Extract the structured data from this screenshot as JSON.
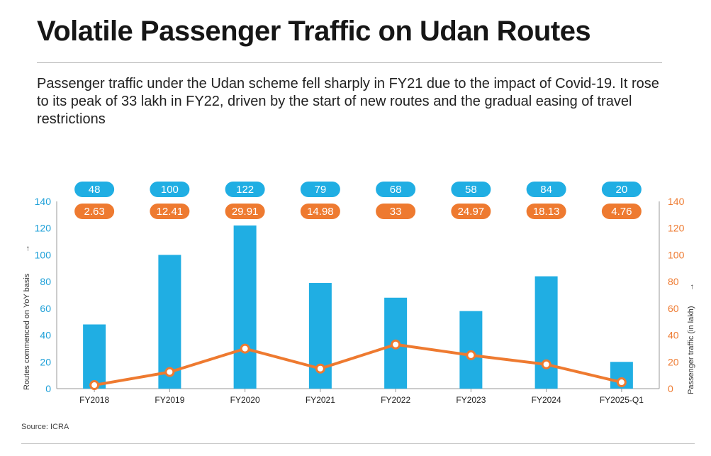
{
  "header": {
    "title": "Volatile Passenger Traffic on Udan Routes",
    "subtitle": "Passenger traffic under the Udan scheme fell sharply in FY21 due to the impact of Covid-19. It rose to its peak of 33 lakh in FY22, driven by the start of new routes and the gradual easing of travel restrictions"
  },
  "footer": {
    "source": "Source: ICRA"
  },
  "colors": {
    "bar": "#20aee3",
    "line": "#ee7a30",
    "left_axis_text": "#1ea0d8",
    "right_axis_text": "#ee7a30",
    "axis": "#999999"
  },
  "chart_data": {
    "type": "bar",
    "categories": [
      "FY2018",
      "FY2019",
      "FY2020",
      "FY2021",
      "FY2022",
      "FY2023",
      "FY2024",
      "FY2025-Q1"
    ],
    "series": [
      {
        "name": "Routes commenced on YoY basis",
        "type": "bar",
        "axis": "left",
        "values": [
          48,
          100,
          122,
          79,
          68,
          58,
          84,
          20
        ],
        "labels": [
          "48",
          "100",
          "122",
          "79",
          "68",
          "58",
          "84",
          "20"
        ]
      },
      {
        "name": "Passenger traffic (in lakh)",
        "type": "line",
        "axis": "right",
        "values": [
          2.63,
          12.41,
          29.91,
          14.98,
          33,
          24.97,
          18.13,
          4.76
        ],
        "labels": [
          "2.63",
          "12.41",
          "29.91",
          "14.98",
          "33",
          "24.97",
          "18.13",
          "4.76"
        ]
      }
    ],
    "yleft_label": "Routes commenced on YoY basis",
    "yright_label": "Passenger traffic (in lakh)",
    "yleft_ticks": [
      0,
      20,
      40,
      60,
      80,
      100,
      120,
      140
    ],
    "yright_ticks": [
      0,
      20,
      40,
      60,
      80,
      100,
      120,
      140
    ],
    "ylim_left": [
      0,
      140
    ],
    "ylim_right": [
      0,
      140
    ],
    "arrow_glyph": "→"
  }
}
